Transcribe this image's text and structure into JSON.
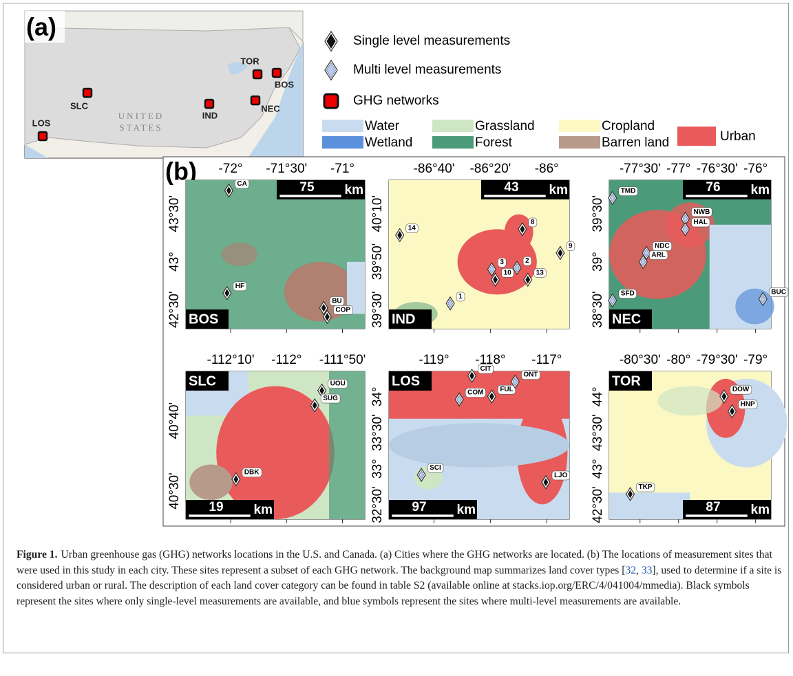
{
  "panel_a": {
    "label": "(a)",
    "map_labels": [
      "UNITED",
      "STATES"
    ],
    "cities": [
      "LOS",
      "SLC",
      "IND",
      "TOR",
      "BOS",
      "NEC"
    ]
  },
  "legend": {
    "symbols": [
      "Single level measurements",
      "Multi level measurements",
      "GHG networks"
    ],
    "land_cover": [
      {
        "name": "Water",
        "color": "#c9dcef"
      },
      {
        "name": "Wetland",
        "color": "#5b90dc"
      },
      {
        "name": "Grassland",
        "color": "#cfe6c4"
      },
      {
        "name": "Forest",
        "color": "#4b9b7b"
      },
      {
        "name": "Cropland",
        "color": "#fcf8c3"
      },
      {
        "name": "Barren land",
        "color": "#b89a8b"
      },
      {
        "name": "Urban",
        "color": "#e95b5b"
      }
    ]
  },
  "panel_b": {
    "label": "(b)",
    "unit": "km",
    "maps": [
      {
        "name": "BOS",
        "scale": "75",
        "top_ticks": [
          "-72°",
          "-71°30'",
          "-71°"
        ],
        "left_ticks": [
          "43°30'",
          "43°",
          "42°30'"
        ],
        "sites": [
          {
            "label": "CA",
            "kind": "single"
          },
          {
            "label": "HF",
            "kind": "single"
          },
          {
            "label": "BU",
            "kind": "single"
          },
          {
            "label": "COP",
            "kind": "single"
          }
        ]
      },
      {
        "name": "IND",
        "scale": "43",
        "top_ticks": [
          "-86°40'",
          "-86°20'",
          "-86°"
        ],
        "left_ticks": [
          "40°10'",
          "39°50'",
          "39°30'"
        ],
        "sites": [
          {
            "label": "14",
            "kind": "single"
          },
          {
            "label": "8",
            "kind": "single"
          },
          {
            "label": "9",
            "kind": "single"
          },
          {
            "label": "3",
            "kind": "multi"
          },
          {
            "label": "2",
            "kind": "multi"
          },
          {
            "label": "13",
            "kind": "single"
          },
          {
            "label": "10",
            "kind": "single"
          },
          {
            "label": "1",
            "kind": "multi"
          }
        ]
      },
      {
        "name": "NEC",
        "scale": "76",
        "top_ticks": [
          "-77°30'",
          "-77°",
          "-76°30'",
          "-76°"
        ],
        "left_ticks": [
          "39°30'",
          "39°",
          "38°30'"
        ],
        "sites": [
          {
            "label": "TMD",
            "kind": "multi"
          },
          {
            "label": "NWB",
            "kind": "multi"
          },
          {
            "label": "HAL",
            "kind": "multi"
          },
          {
            "label": "NDC",
            "kind": "multi"
          },
          {
            "label": "ARL",
            "kind": "multi"
          },
          {
            "label": "SFD",
            "kind": "multi"
          },
          {
            "label": "BUC",
            "kind": "multi"
          }
        ]
      },
      {
        "name": "SLC",
        "scale": "19",
        "top_ticks": [
          "-112°10'",
          "-112°",
          "-111°50'"
        ],
        "left_ticks": [
          "40°40'",
          "40°30'"
        ],
        "sites": [
          {
            "label": "UOU",
            "kind": "single"
          },
          {
            "label": "SUG",
            "kind": "single"
          },
          {
            "label": "DBK",
            "kind": "single"
          }
        ]
      },
      {
        "name": "LOS",
        "scale": "97",
        "top_ticks": [
          "-119°",
          "-118°",
          "-117°"
        ],
        "left_ticks": [
          "34°",
          "33°30'",
          "33°",
          "32°30'"
        ],
        "sites": [
          {
            "label": "CIT",
            "kind": "single"
          },
          {
            "label": "COM",
            "kind": "multi"
          },
          {
            "label": "FUL",
            "kind": "single"
          },
          {
            "label": "ONT",
            "kind": "multi"
          },
          {
            "label": "SCI",
            "kind": "multi"
          },
          {
            "label": "LJO",
            "kind": "single"
          }
        ]
      },
      {
        "name": "TOR",
        "scale": "87",
        "top_ticks": [
          "-80°30'",
          "-80°",
          "-79°30'",
          "-79°"
        ],
        "left_ticks": [
          "44°",
          "43°30'",
          "43°",
          "42°30'"
        ],
        "sites": [
          {
            "label": "DOW",
            "kind": "single"
          },
          {
            "label": "HNP",
            "kind": "single"
          },
          {
            "label": "TKP",
            "kind": "single"
          }
        ]
      }
    ]
  },
  "caption": {
    "parts": [
      {
        "text": "Figure 1.",
        "style": "bold"
      },
      {
        "text": "Urban greenhouse gas (GHG) networks locations in the U.S. and Canada. (a) Cities where the GHG networks are located. (b) The locations of measurement sites that were used in this study in each city. These sites represent a subset of each GHG network. The background map summarizes land cover types [",
        "style": "plain"
      },
      {
        "text": "32",
        "style": "ref"
      },
      {
        "text": ", ",
        "style": "plain"
      },
      {
        "text": "33",
        "style": "ref"
      },
      {
        "text": "], used to determine if a site is considered urban or rural. The description of each land cover category can be found in table S2 (available online at stacks.iop.org/ERC/4/041004/mmedia). Black symbols represent the sites where only single-level measurements are available, and blue symbols represent the sites where multi-level measurements are available.",
        "style": "plain"
      }
    ]
  }
}
